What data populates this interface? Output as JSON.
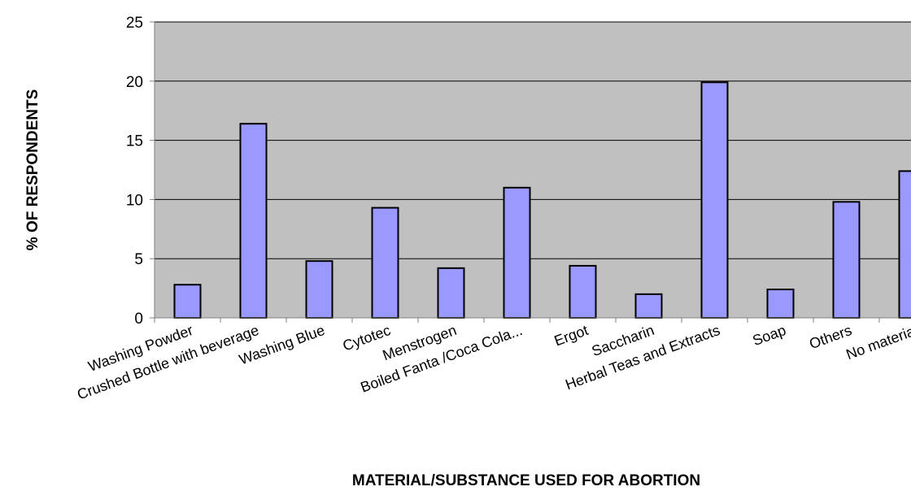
{
  "chart_data": {
    "type": "bar",
    "title": "",
    "xlabel": "MATERIAL/SUBSTANCE USED FOR ABORTION",
    "ylabel": "% OF RESPONDENTS",
    "categories": [
      "Washing Powder",
      "Crushed Bottle with beverage",
      "Washing Blue",
      "Cytotec",
      "Menstrogen",
      "Boiled Fanta /Coca Cola...",
      "Ergot",
      "Saccharin",
      "Herbal Teas and Extracts",
      "Soap",
      "Others",
      "No material"
    ],
    "values": [
      2.8,
      16.4,
      4.8,
      9.3,
      4.2,
      11.0,
      4.4,
      2.0,
      19.9,
      2.4,
      9.8,
      12.4
    ],
    "ylim": [
      0,
      25
    ],
    "yticks": [
      0,
      5,
      10,
      15,
      20,
      25
    ],
    "grid": true,
    "colors": {
      "bar_fill": "#9999FF",
      "bar_stroke": "#000000",
      "plot_background": "#C0C0C0",
      "gridline": "#000000"
    }
  }
}
